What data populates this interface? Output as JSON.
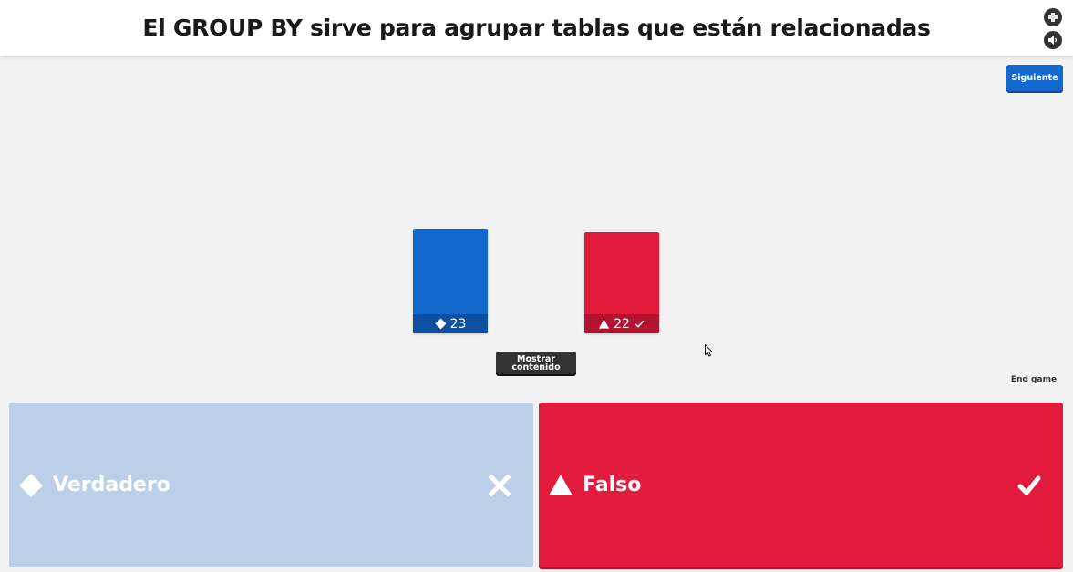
{
  "question": {
    "title": "El GROUP BY sirve para agrupar tablas que están relacionadas"
  },
  "header_controls": {
    "fullscreen_icon": "fullscreen-icon",
    "sound_icon": "sound-icon"
  },
  "controls": {
    "next_label": "Siguiente",
    "show_content_label": "Mostrar contenido",
    "end_game_label": "End game"
  },
  "results": [
    {
      "shape": "diamond-icon",
      "count": "23",
      "correct": false,
      "color": "#1368ce"
    },
    {
      "shape": "triangle-icon",
      "count": "22",
      "correct": true,
      "color": "#e21b3c"
    }
  ],
  "answers": [
    {
      "shape": "diamond-icon",
      "label": "Verdadero",
      "result_icon": "cross-icon",
      "correct": false,
      "color": "#bccfe9"
    },
    {
      "shape": "triangle-icon",
      "label": "Falso",
      "result_icon": "check-icon",
      "correct": true,
      "color": "#e21b3c"
    }
  ]
}
